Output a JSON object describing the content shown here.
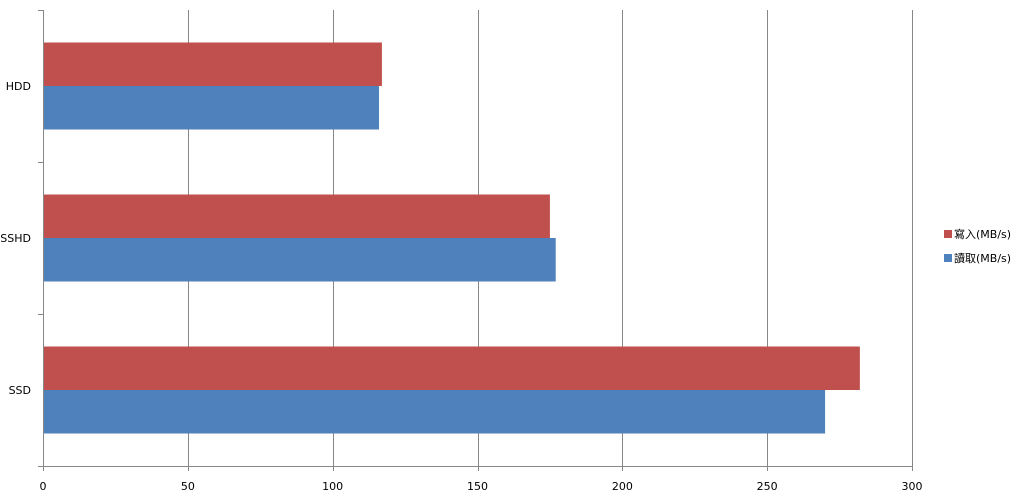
{
  "chart_data": {
    "type": "bar",
    "orientation": "horizontal",
    "categories": [
      "HDD",
      "SSHD",
      "SSD"
    ],
    "series": [
      {
        "name": "寫入(MB/s)",
        "color": "#c0504d",
        "values": [
          117,
          175,
          282
        ]
      },
      {
        "name": "讀取(MB/s)",
        "color": "#4f81bd",
        "values": [
          116,
          177,
          270
        ]
      }
    ],
    "xlim": [
      0,
      300
    ],
    "xticks": [
      0,
      50,
      100,
      150,
      200,
      250,
      300
    ],
    "grid": true,
    "legend_position": "right"
  }
}
